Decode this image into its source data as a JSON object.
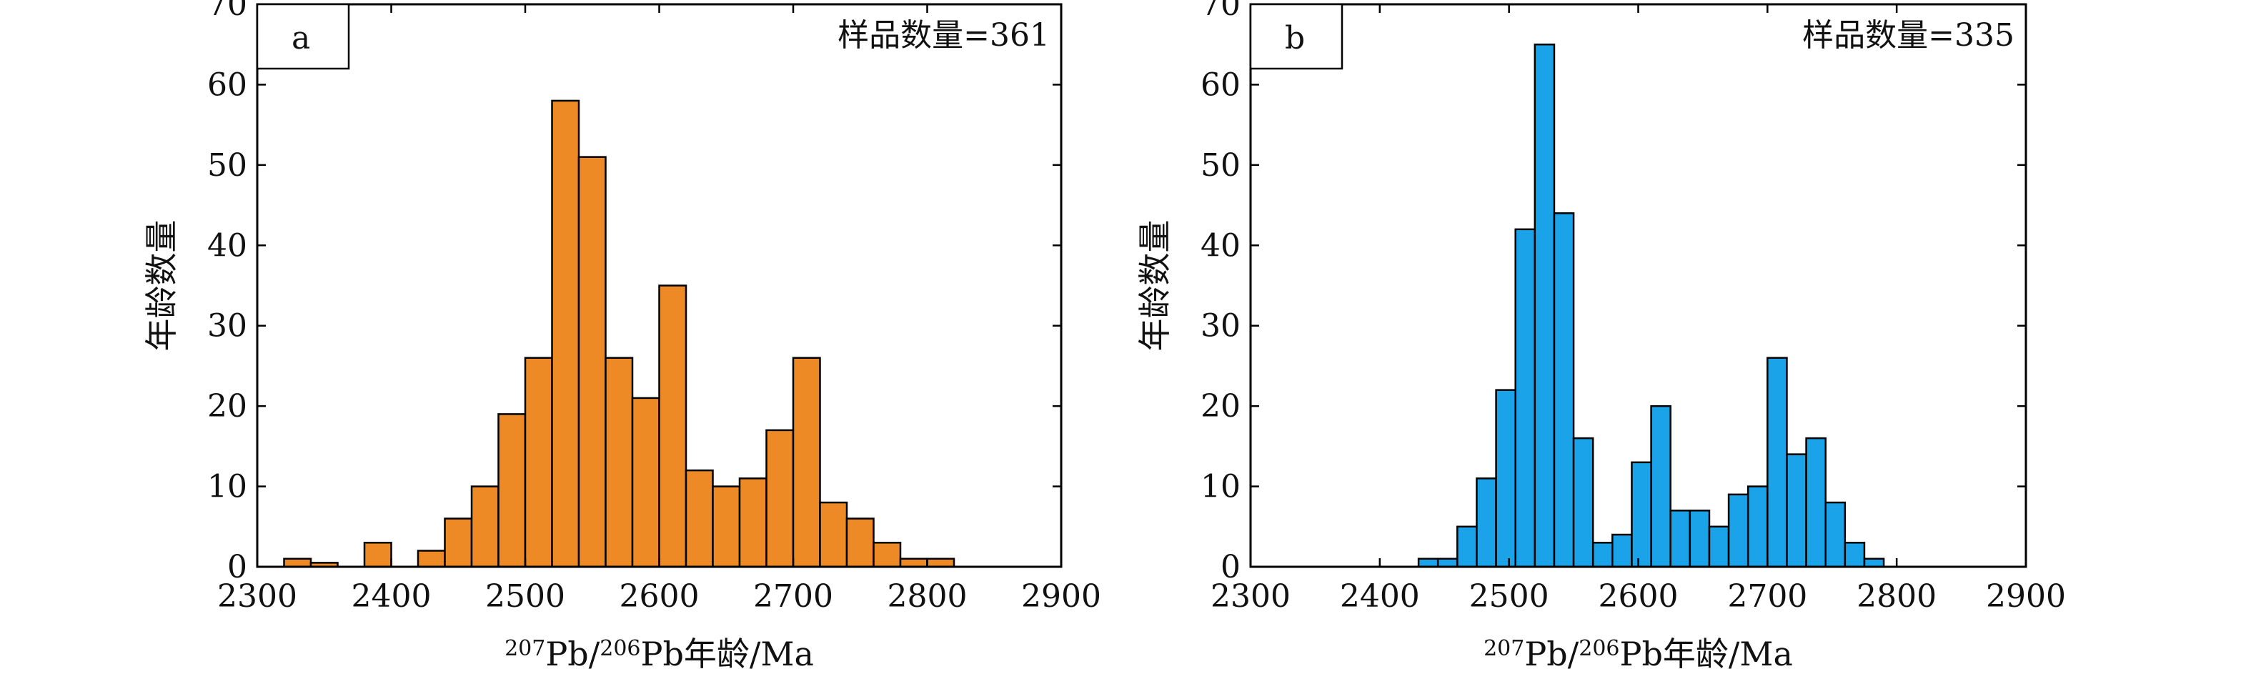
{
  "chart_data": [
    {
      "type": "bar",
      "panel_label": "a",
      "annotation": "样品数量=361",
      "xlabel": {
        "sup1": "207",
        "pb1": "Pb/",
        "sup2": "206",
        "rest": "Pb年龄/Ma"
      },
      "ylabel": "年龄数量",
      "xlim": [
        2300,
        2900
      ],
      "ylim": [
        0,
        70
      ],
      "xticks": [
        "2300",
        "2400",
        "2500",
        "2600",
        "2700",
        "2800",
        "2900"
      ],
      "yticks": [
        "0",
        "10",
        "20",
        "30",
        "40",
        "50",
        "60",
        "70"
      ],
      "bar_color": "#ee8a26",
      "bin_width": 20,
      "bins": [
        {
          "start": 2320,
          "value": 1
        },
        {
          "start": 2340,
          "value": 0.5
        },
        {
          "start": 2380,
          "value": 3
        },
        {
          "start": 2420,
          "value": 2
        },
        {
          "start": 2440,
          "value": 6
        },
        {
          "start": 2460,
          "value": 10
        },
        {
          "start": 2480,
          "value": 19
        },
        {
          "start": 2500,
          "value": 26
        },
        {
          "start": 2520,
          "value": 58
        },
        {
          "start": 2540,
          "value": 51
        },
        {
          "start": 2560,
          "value": 26
        },
        {
          "start": 2580,
          "value": 21
        },
        {
          "start": 2600,
          "value": 35
        },
        {
          "start": 2620,
          "value": 12
        },
        {
          "start": 2640,
          "value": 10
        },
        {
          "start": 2660,
          "value": 11
        },
        {
          "start": 2680,
          "value": 17
        },
        {
          "start": 2700,
          "value": 26
        },
        {
          "start": 2720,
          "value": 8
        },
        {
          "start": 2740,
          "value": 6
        },
        {
          "start": 2760,
          "value": 3
        },
        {
          "start": 2780,
          "value": 1
        },
        {
          "start": 2800,
          "value": 1
        }
      ]
    },
    {
      "type": "bar",
      "panel_label": "b",
      "annotation": "样品数量=335",
      "xlabel": {
        "sup1": "207",
        "pb1": "Pb/",
        "sup2": "206",
        "rest": "Pb年龄/Ma"
      },
      "ylabel": "年龄数量",
      "xlim": [
        2300,
        2900
      ],
      "ylim": [
        0,
        70
      ],
      "xticks": [
        "2300",
        "2400",
        "2500",
        "2600",
        "2700",
        "2800",
        "2900"
      ],
      "yticks": [
        "0",
        "10",
        "20",
        "30",
        "40",
        "50",
        "60",
        "70"
      ],
      "bar_color": "#1aa3e8",
      "bin_width": 15,
      "bins": [
        {
          "start": 2430,
          "value": 1
        },
        {
          "start": 2445,
          "value": 1
        },
        {
          "start": 2460,
          "value": 5
        },
        {
          "start": 2475,
          "value": 11
        },
        {
          "start": 2490,
          "value": 22
        },
        {
          "start": 2505,
          "value": 42
        },
        {
          "start": 2520,
          "value": 65
        },
        {
          "start": 2535,
          "value": 44
        },
        {
          "start": 2550,
          "value": 16
        },
        {
          "start": 2565,
          "value": 3
        },
        {
          "start": 2580,
          "value": 4
        },
        {
          "start": 2595,
          "value": 13
        },
        {
          "start": 2610,
          "value": 20
        },
        {
          "start": 2625,
          "value": 7
        },
        {
          "start": 2640,
          "value": 7
        },
        {
          "start": 2655,
          "value": 5
        },
        {
          "start": 2670,
          "value": 9
        },
        {
          "start": 2685,
          "value": 10
        },
        {
          "start": 2700,
          "value": 26
        },
        {
          "start": 2715,
          "value": 14
        },
        {
          "start": 2730,
          "value": 16
        },
        {
          "start": 2745,
          "value": 8
        },
        {
          "start": 2760,
          "value": 3
        },
        {
          "start": 2775,
          "value": 1
        }
      ]
    }
  ]
}
